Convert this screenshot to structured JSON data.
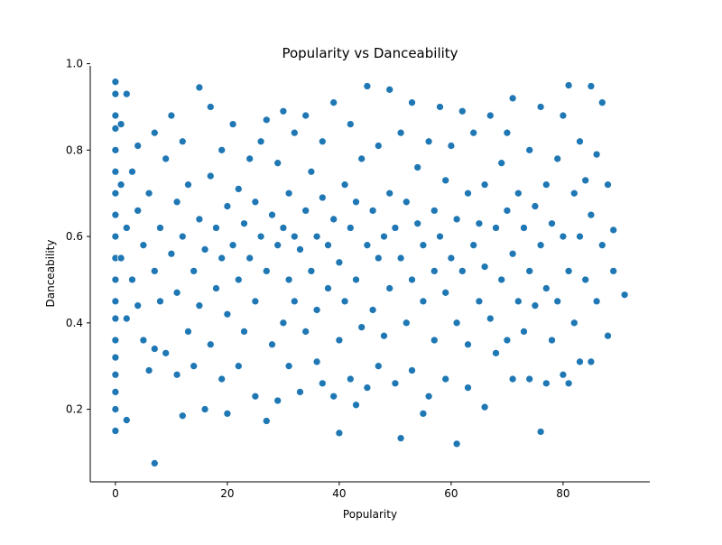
{
  "chart_data": {
    "type": "scatter",
    "title": "Popularity vs Danceability",
    "x_label": "Popularity",
    "y_label": "Danceability",
    "color": "#1f77b4",
    "x": [
      0,
      0,
      0,
      0,
      0,
      0,
      0,
      0,
      0,
      0,
      0,
      0,
      0,
      0,
      0,
      0,
      0,
      0,
      0,
      1,
      1,
      1,
      2,
      2,
      2,
      2,
      3,
      3,
      4,
      4,
      4,
      5,
      5,
      6,
      6,
      7,
      7,
      7,
      7,
      8,
      8,
      9,
      9,
      10,
      10,
      11,
      11,
      11,
      12,
      12,
      12,
      13,
      13,
      14,
      14,
      15,
      15,
      15,
      16,
      16,
      17,
      17,
      17,
      18,
      18,
      19,
      19,
      19,
      20,
      20,
      20,
      21,
      21,
      22,
      22,
      22,
      23,
      23,
      24,
      24,
      25,
      25,
      25,
      26,
      26,
      27,
      27,
      27,
      28,
      28,
      29,
      29,
      29,
      30,
      30,
      30,
      31,
      31,
      31,
      32,
      32,
      32,
      33,
      33,
      34,
      34,
      34,
      35,
      35,
      36,
      36,
      36,
      37,
      37,
      37,
      38,
      38,
      39,
      39,
      39,
      40,
      40,
      40,
      41,
      41,
      42,
      42,
      42,
      43,
      43,
      43,
      44,
      44,
      45,
      45,
      45,
      46,
      46,
      47,
      47,
      47,
      48,
      48,
      49,
      49,
      49,
      50,
      50,
      51,
      51,
      51,
      52,
      52,
      53,
      53,
      53,
      54,
      54,
      55,
      55,
      55,
      56,
      56,
      57,
      57,
      57,
      58,
      58,
      59,
      59,
      59,
      60,
      60,
      61,
      61,
      61,
      62,
      62,
      63,
      63,
      63,
      64,
      64,
      65,
      65,
      66,
      66,
      66,
      67,
      67,
      68,
      68,
      69,
      69,
      70,
      70,
      70,
      71,
      71,
      71,
      72,
      72,
      73,
      73,
      74,
      74,
      74,
      75,
      75,
      76,
      76,
      76,
      77,
      77,
      77,
      78,
      78,
      79,
      79,
      80,
      80,
      80,
      81,
      81,
      81,
      82,
      82,
      83,
      83,
      83,
      84,
      84,
      85,
      85,
      85,
      86,
      86,
      87,
      87,
      88,
      88,
      89,
      89,
      91
    ],
    "values": [
      0.15,
      0.2,
      0.24,
      0.28,
      0.32,
      0.36,
      0.41,
      0.45,
      0.5,
      0.55,
      0.6,
      0.65,
      0.7,
      0.75,
      0.8,
      0.85,
      0.88,
      0.93,
      0.958,
      0.55,
      0.72,
      0.86,
      0.175,
      0.93,
      0.62,
      0.41,
      0.5,
      0.75,
      0.44,
      0.66,
      0.81,
      0.58,
      0.36,
      0.29,
      0.7,
      0.075,
      0.84,
      0.52,
      0.34,
      0.62,
      0.45,
      0.78,
      0.33,
      0.88,
      0.56,
      0.28,
      0.68,
      0.47,
      0.185,
      0.6,
      0.82,
      0.38,
      0.72,
      0.52,
      0.3,
      0.945,
      0.64,
      0.44,
      0.2,
      0.57,
      0.9,
      0.35,
      0.74,
      0.48,
      0.62,
      0.27,
      0.8,
      0.55,
      0.19,
      0.67,
      0.42,
      0.86,
      0.58,
      0.3,
      0.71,
      0.5,
      0.63,
      0.38,
      0.55,
      0.78,
      0.23,
      0.45,
      0.68,
      0.6,
      0.82,
      0.173,
      0.87,
      0.52,
      0.35,
      0.65,
      0.22,
      0.58,
      0.77,
      0.4,
      0.89,
      0.62,
      0.3,
      0.7,
      0.5,
      0.84,
      0.45,
      0.6,
      0.24,
      0.57,
      0.66,
      0.38,
      0.88,
      0.52,
      0.75,
      0.31,
      0.6,
      0.43,
      0.26,
      0.69,
      0.82,
      0.48,
      0.58,
      0.23,
      0.91,
      0.64,
      0.145,
      0.54,
      0.36,
      0.72,
      0.45,
      0.27,
      0.62,
      0.86,
      0.21,
      0.5,
      0.68,
      0.39,
      0.78,
      0.948,
      0.58,
      0.25,
      0.66,
      0.43,
      0.3,
      0.81,
      0.55,
      0.6,
      0.37,
      0.94,
      0.48,
      0.7,
      0.26,
      0.62,
      0.133,
      0.55,
      0.84,
      0.4,
      0.68,
      0.91,
      0.5,
      0.29,
      0.63,
      0.76,
      0.19,
      0.45,
      0.58,
      0.82,
      0.23,
      0.52,
      0.66,
      0.36,
      0.9,
      0.6,
      0.27,
      0.73,
      0.47,
      0.55,
      0.81,
      0.12,
      0.64,
      0.4,
      0.89,
      0.52,
      0.35,
      0.7,
      0.25,
      0.58,
      0.84,
      0.45,
      0.63,
      0.205,
      0.72,
      0.53,
      0.88,
      0.41,
      0.62,
      0.33,
      0.5,
      0.77,
      0.36,
      0.66,
      0.84,
      0.27,
      0.56,
      0.92,
      0.45,
      0.7,
      0.62,
      0.38,
      0.27,
      0.8,
      0.52,
      0.67,
      0.44,
      0.148,
      0.58,
      0.9,
      0.26,
      0.72,
      0.48,
      0.36,
      0.63,
      0.78,
      0.45,
      0.28,
      0.6,
      0.88,
      0.95,
      0.52,
      0.26,
      0.7,
      0.4,
      0.31,
      0.82,
      0.6,
      0.5,
      0.73,
      0.948,
      0.31,
      0.65,
      0.45,
      0.79,
      0.91,
      0.58,
      0.37,
      0.72,
      0.52,
      0.615,
      0.465
    ],
    "xlim": [
      -4.5,
      95.5
    ],
    "ylim": [
      0.032,
      0.995
    ],
    "xticks": [
      0,
      20,
      40,
      60,
      80
    ],
    "yticks": [
      0.2,
      0.4,
      0.6,
      0.8,
      {
        "value": 1,
        "label": "1.0"
      }
    ]
  }
}
